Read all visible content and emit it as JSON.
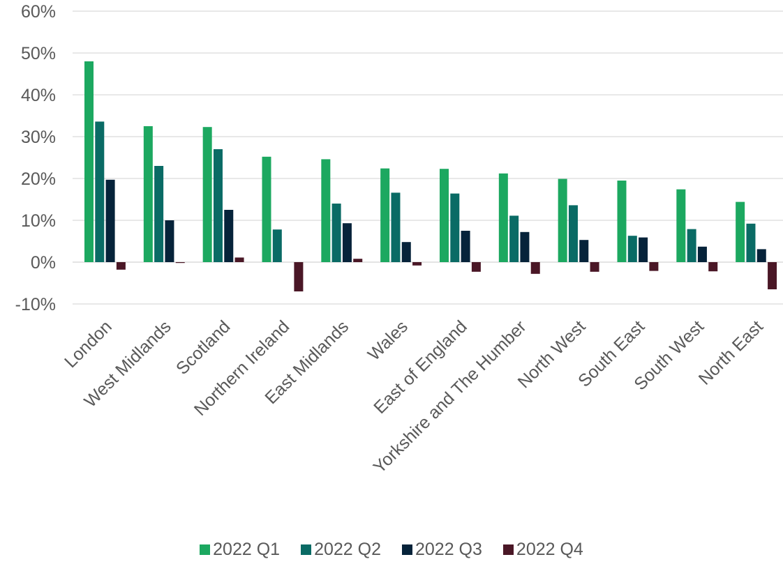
{
  "chart_data": {
    "type": "bar",
    "categories": [
      "London",
      "West Midlands",
      "Scotland",
      "Northern Ireland",
      "East Midlands",
      "Wales",
      "East of England",
      "Yorkshire and The Humber",
      "North West",
      "South East",
      "South West",
      "North East"
    ],
    "series": [
      {
        "name": "2022 Q1",
        "color": "#1ca860",
        "values": [
          48.0,
          32.5,
          32.3,
          25.2,
          24.6,
          22.4,
          22.3,
          21.2,
          19.9,
          19.5,
          17.4,
          14.4
        ]
      },
      {
        "name": "2022 Q2",
        "color": "#0a6b65",
        "values": [
          33.6,
          23.0,
          27.0,
          7.8,
          14.0,
          16.6,
          16.4,
          11.1,
          13.6,
          6.3,
          7.9,
          9.2
        ]
      },
      {
        "name": "2022 Q3",
        "color": "#06233a",
        "values": [
          19.7,
          10.0,
          12.5,
          0.0,
          9.3,
          4.8,
          7.5,
          7.2,
          5.3,
          5.9,
          3.7,
          3.1
        ]
      },
      {
        "name": "2022 Q4",
        "color": "#4a1726",
        "values": [
          -1.8,
          -0.2,
          1.1,
          -7.0,
          0.8,
          -0.8,
          -2.3,
          -2.8,
          -2.3,
          -2.1,
          -2.2,
          -6.5
        ]
      }
    ],
    "y_ticks": [
      "-10%",
      "0%",
      "10%",
      "20%",
      "30%",
      "40%",
      "50%",
      "60%"
    ],
    "ylim": [
      -10,
      60
    ],
    "grid": true,
    "legend_position": "bottom"
  }
}
